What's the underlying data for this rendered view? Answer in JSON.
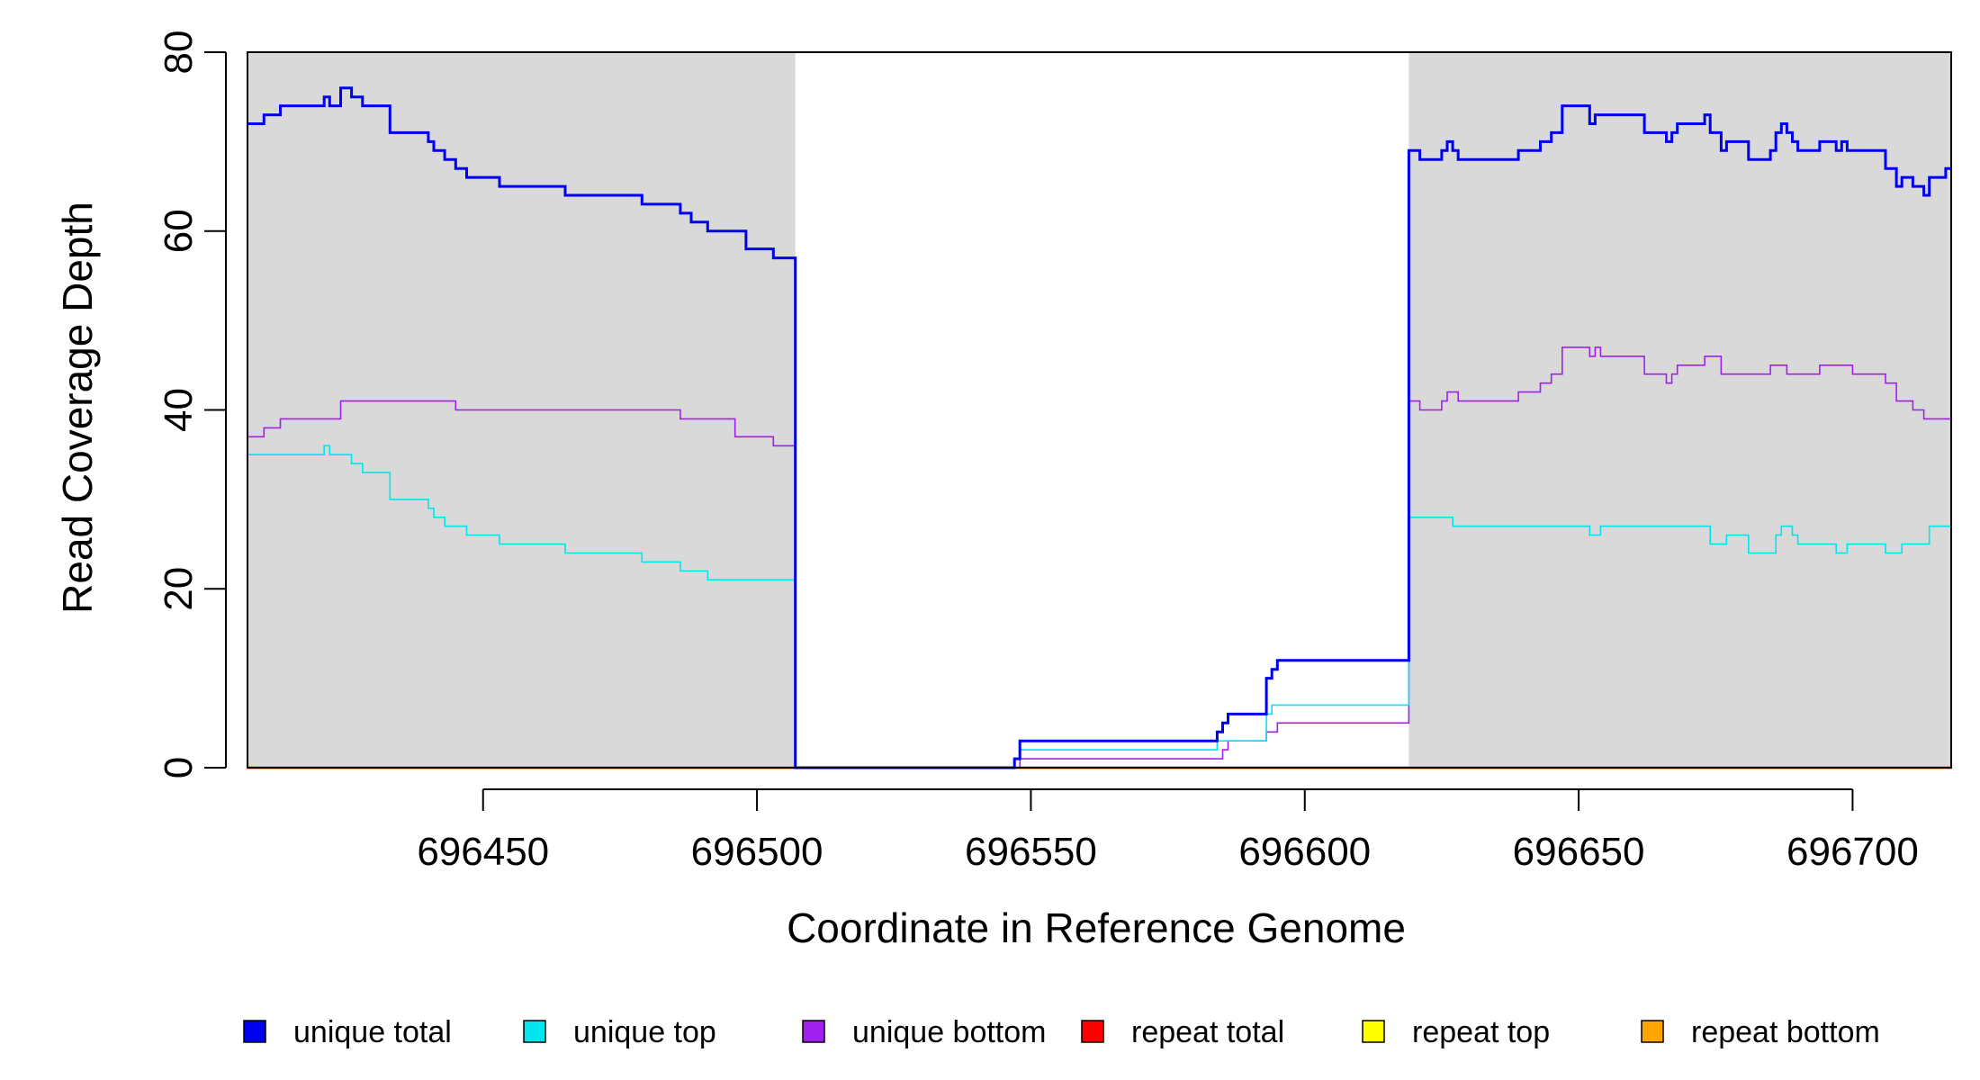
{
  "chart_data": {
    "type": "line",
    "xlabel": "Coordinate in Reference Genome",
    "ylabel": "Read Coverage Depth",
    "xlim": [
      696407,
      696718
    ],
    "ylim": [
      0,
      80
    ],
    "x_ticks": [
      696450,
      696500,
      696550,
      696600,
      696650,
      696700
    ],
    "x_tick_labels": [
      "696450",
      "696500",
      "696550",
      "696600",
      "696650",
      "696700"
    ],
    "y_ticks": [
      0,
      20,
      40,
      60,
      80
    ],
    "y_tick_labels": [
      "0",
      "20",
      "40",
      "60",
      "80"
    ],
    "shaded_regions": [
      {
        "x0": 696407,
        "x1": 696507,
        "color": "#d9d9d9"
      },
      {
        "x0": 696619,
        "x1": 696718,
        "color": "#d9d9d9"
      }
    ],
    "series": [
      {
        "name": "unique total",
        "color": "#0000ee",
        "points": [
          [
            696407,
            72
          ],
          [
            696410,
            73
          ],
          [
            696413,
            74
          ],
          [
            696421,
            75
          ],
          [
            696422,
            74
          ],
          [
            696424,
            76
          ],
          [
            696426,
            75
          ],
          [
            696428,
            74
          ],
          [
            696433,
            71
          ],
          [
            696440,
            70
          ],
          [
            696441,
            69
          ],
          [
            696443,
            68
          ],
          [
            696445,
            67
          ],
          [
            696447,
            66
          ],
          [
            696453,
            65
          ],
          [
            696465,
            64
          ],
          [
            696479,
            63
          ],
          [
            696486,
            62
          ],
          [
            696488,
            61
          ],
          [
            696491,
            60
          ],
          [
            696498,
            58
          ],
          [
            696503,
            57
          ],
          [
            696507,
            0
          ],
          [
            696547,
            1
          ],
          [
            696548,
            3
          ],
          [
            696584,
            4
          ],
          [
            696585,
            5
          ],
          [
            696586,
            6
          ],
          [
            696593,
            10
          ],
          [
            696594,
            11
          ],
          [
            696595,
            12
          ],
          [
            696619,
            69
          ],
          [
            696621,
            68
          ],
          [
            696625,
            69
          ],
          [
            696626,
            70
          ],
          [
            696627,
            69
          ],
          [
            696628,
            68
          ],
          [
            696639,
            69
          ],
          [
            696643,
            70
          ],
          [
            696645,
            71
          ],
          [
            696647,
            74
          ],
          [
            696652,
            72
          ],
          [
            696653,
            73
          ],
          [
            696662,
            71
          ],
          [
            696666,
            70
          ],
          [
            696667,
            71
          ],
          [
            696668,
            72
          ],
          [
            696673,
            73
          ],
          [
            696674,
            71
          ],
          [
            696676,
            69
          ],
          [
            696677,
            70
          ],
          [
            696681,
            68
          ],
          [
            696685,
            69
          ],
          [
            696686,
            71
          ],
          [
            696687,
            72
          ],
          [
            696688,
            71
          ],
          [
            696689,
            70
          ],
          [
            696690,
            69
          ],
          [
            696694,
            70
          ],
          [
            696697,
            69
          ],
          [
            696698,
            70
          ],
          [
            696699,
            69
          ],
          [
            696706,
            67
          ],
          [
            696708,
            65
          ],
          [
            696709,
            66
          ],
          [
            696711,
            65
          ],
          [
            696713,
            64
          ],
          [
            696714,
            66
          ],
          [
            696717,
            67
          ],
          [
            696718,
            67
          ]
        ]
      },
      {
        "name": "unique top",
        "color": "#00e5ee",
        "points": [
          [
            696407,
            35
          ],
          [
            696421,
            36
          ],
          [
            696422,
            35
          ],
          [
            696426,
            34
          ],
          [
            696428,
            33
          ],
          [
            696433,
            30
          ],
          [
            696440,
            29
          ],
          [
            696441,
            28
          ],
          [
            696443,
            27
          ],
          [
            696447,
            26
          ],
          [
            696453,
            25
          ],
          [
            696465,
            24
          ],
          [
            696479,
            23
          ],
          [
            696486,
            22
          ],
          [
            696491,
            21
          ],
          [
            696507,
            0
          ],
          [
            696547,
            1
          ],
          [
            696548,
            2
          ],
          [
            696584,
            3
          ],
          [
            696586,
            3
          ],
          [
            696593,
            6
          ],
          [
            696594,
            7
          ],
          [
            696619,
            28
          ],
          [
            696627,
            27
          ],
          [
            696652,
            26
          ],
          [
            696654,
            27
          ],
          [
            696674,
            25
          ],
          [
            696677,
            26
          ],
          [
            696681,
            24
          ],
          [
            696686,
            26
          ],
          [
            696687,
            27
          ],
          [
            696689,
            26
          ],
          [
            696690,
            25
          ],
          [
            696697,
            24
          ],
          [
            696699,
            25
          ],
          [
            696706,
            24
          ],
          [
            696709,
            25
          ],
          [
            696714,
            27
          ],
          [
            696718,
            27
          ]
        ]
      },
      {
        "name": "unique bottom",
        "color": "#a020f0",
        "points": [
          [
            696407,
            37
          ],
          [
            696410,
            38
          ],
          [
            696413,
            39
          ],
          [
            696424,
            41
          ],
          [
            696445,
            40
          ],
          [
            696486,
            39
          ],
          [
            696496,
            37
          ],
          [
            696503,
            36
          ],
          [
            696507,
            0
          ],
          [
            696548,
            1
          ],
          [
            696585,
            2
          ],
          [
            696586,
            3
          ],
          [
            696593,
            4
          ],
          [
            696595,
            5
          ],
          [
            696619,
            41
          ],
          [
            696621,
            40
          ],
          [
            696625,
            41
          ],
          [
            696626,
            42
          ],
          [
            696628,
            41
          ],
          [
            696639,
            42
          ],
          [
            696643,
            43
          ],
          [
            696645,
            44
          ],
          [
            696647,
            47
          ],
          [
            696652,
            46
          ],
          [
            696653,
            47
          ],
          [
            696654,
            46
          ],
          [
            696662,
            44
          ],
          [
            696666,
            43
          ],
          [
            696667,
            44
          ],
          [
            696668,
            45
          ],
          [
            696673,
            46
          ],
          [
            696676,
            44
          ],
          [
            696685,
            45
          ],
          [
            696688,
            44
          ],
          [
            696694,
            45
          ],
          [
            696700,
            44
          ],
          [
            696706,
            43
          ],
          [
            696708,
            41
          ],
          [
            696711,
            40
          ],
          [
            696713,
            39
          ],
          [
            696718,
            39
          ]
        ]
      },
      {
        "name": "repeat total",
        "color": "#ff0000",
        "points": [
          [
            696407,
            0
          ],
          [
            696718,
            0
          ]
        ]
      },
      {
        "name": "repeat top",
        "color": "#ffff00",
        "points": [
          [
            696407,
            0
          ],
          [
            696718,
            0
          ]
        ]
      },
      {
        "name": "repeat bottom",
        "color": "#ffa500",
        "points": [
          [
            696407,
            0
          ],
          [
            696718,
            0
          ]
        ]
      }
    ],
    "legend": {
      "position": "bottom",
      "items": [
        {
          "label": "unique total",
          "color": "#0000ee"
        },
        {
          "label": "unique top",
          "color": "#00e5ee"
        },
        {
          "label": "unique bottom",
          "color": "#a020f0"
        },
        {
          "label": "repeat total",
          "color": "#ff0000"
        },
        {
          "label": "repeat top",
          "color": "#ffff00"
        },
        {
          "label": "repeat bottom",
          "color": "#ffa500"
        }
      ]
    },
    "grid": false
  }
}
